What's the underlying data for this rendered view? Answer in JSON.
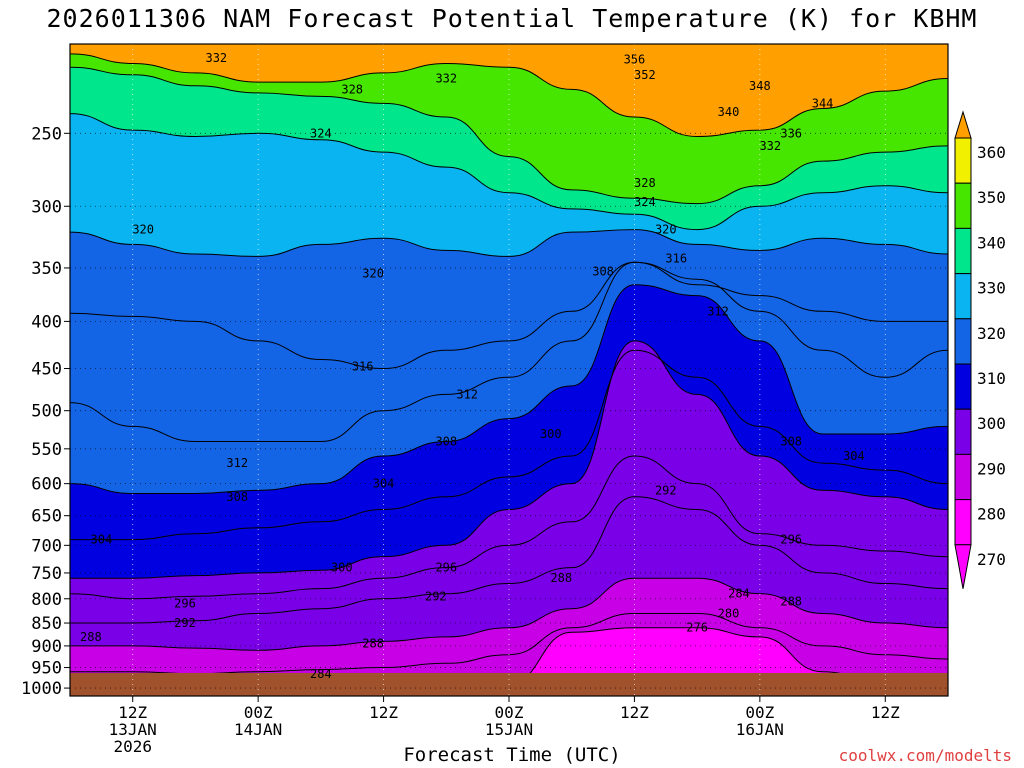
{
  "chart_data": {
    "type": "contour",
    "title": "2026011306 NAM Forecast Potential Temperature (K) for KBHM",
    "xlabel": "Forecast Time (UTC)",
    "ylabel": "",
    "credit": "coolwx.com/modelts",
    "y_axis": {
      "scale": "pressure (log)",
      "ticks": [
        250,
        300,
        350,
        400,
        450,
        500,
        550,
        600,
        650,
        700,
        750,
        800,
        850,
        900,
        950,
        1000
      ],
      "range": [
        1020,
        200
      ]
    },
    "x_axis": {
      "ticks": [
        {
          "line1": "12Z",
          "line2": "13JAN",
          "line3": "2026"
        },
        {
          "line1": "00Z",
          "line2": "14JAN",
          "line3": ""
        },
        {
          "line1": "12Z",
          "line2": "",
          "line3": ""
        },
        {
          "line1": "00Z",
          "line2": "15JAN",
          "line3": ""
        },
        {
          "line1": "12Z",
          "line2": "",
          "line3": ""
        },
        {
          "line1": "00Z",
          "line2": "16JAN",
          "line3": ""
        },
        {
          "line1": "12Z",
          "line2": "",
          "line3": ""
        }
      ],
      "hours_from_start": [
        6,
        18,
        30,
        42,
        54,
        66,
        78
      ],
      "range_hours": [
        0,
        84
      ]
    },
    "colorbar": {
      "levels": [
        270,
        280,
        290,
        300,
        310,
        320,
        330,
        340,
        350,
        360
      ],
      "colors": [
        "#ff00ff",
        "#c800e6",
        "#7a00e8",
        "#0000e0",
        "#1464e6",
        "#0ab4f0",
        "#00e68c",
        "#46e600",
        "#f0f000",
        "#ffa000"
      ]
    },
    "series": [
      {
        "theta": 344,
        "pressure": [
          205,
          210,
          215,
          220,
          220,
          215,
          210,
          212,
          224,
          240,
          252,
          248,
          235,
          225,
          218
        ]
      },
      {
        "theta": 332,
        "pressure": [
          212,
          216,
          222,
          226,
          228,
          232,
          240,
          265,
          288,
          294,
          298,
          285,
          268,
          262,
          258
        ]
      },
      {
        "theta": 324,
        "pressure": [
          238,
          248,
          252,
          250,
          254,
          262,
          272,
          290,
          302,
          306,
          318,
          300,
          290,
          285,
          290
        ]
      },
      {
        "theta": 320,
        "pressure": [
          320,
          330,
          338,
          340,
          330,
          325,
          335,
          340,
          320,
          318,
          330,
          335,
          325,
          330,
          338
        ]
      },
      {
        "theta": 316,
        "pressure": [
          392,
          395,
          400,
          420,
          440,
          450,
          430,
          420,
          390,
          345,
          365,
          375,
          390,
          400,
          400
        ]
      },
      {
        "theta": 312,
        "pressure": [
          490,
          520,
          540,
          540,
          540,
          500,
          480,
          460,
          420,
          345,
          360,
          390,
          430,
          460,
          430
        ]
      },
      {
        "theta": 308,
        "pressure": [
          600,
          615,
          615,
          610,
          600,
          560,
          540,
          510,
          470,
          365,
          375,
          420,
          530,
          530,
          520
        ]
      },
      {
        "theta": 304,
        "pressure": [
          690,
          690,
          680,
          670,
          660,
          640,
          620,
          590,
          560,
          430,
          460,
          520,
          570,
          580,
          600
        ]
      },
      {
        "theta": 300,
        "pressure": [
          760,
          760,
          755,
          750,
          745,
          720,
          700,
          640,
          600,
          420,
          480,
          560,
          610,
          620,
          640
        ]
      },
      {
        "theta": 296,
        "pressure": [
          790,
          800,
          795,
          790,
          780,
          760,
          740,
          700,
          660,
          560,
          600,
          680,
          700,
          710,
          720
        ]
      },
      {
        "theta": 292,
        "pressure": [
          850,
          850,
          845,
          830,
          820,
          800,
          790,
          770,
          740,
          620,
          640,
          700,
          750,
          770,
          780
        ]
      },
      {
        "theta": 288,
        "pressure": [
          900,
          900,
          905,
          910,
          900,
          890,
          880,
          860,
          820,
          760,
          760,
          790,
          830,
          850,
          860
        ]
      },
      {
        "theta": 284,
        "pressure": [
          960,
          960,
          965,
          960,
          955,
          950,
          940,
          920,
          860,
          830,
          830,
          860,
          900,
          920,
          930
        ]
      },
      {
        "theta": 276,
        "pressure": [
          1010,
          1010,
          1010,
          1010,
          1010,
          1005,
          1000,
          990,
          870,
          860,
          860,
          880,
          960,
          990,
          1000
        ]
      }
    ],
    "labels": [
      {
        "text": "356",
        "hour": 54,
        "p": 208
      },
      {
        "text": "352",
        "hour": 55,
        "p": 216
      },
      {
        "text": "348",
        "hour": 66,
        "p": 222
      },
      {
        "text": "344",
        "hour": 72,
        "p": 232
      },
      {
        "text": "340",
        "hour": 63,
        "p": 237
      },
      {
        "text": "336",
        "hour": 69,
        "p": 250
      },
      {
        "text": "332",
        "hour": 14,
        "p": 207
      },
      {
        "text": "332",
        "hour": 36,
        "p": 218
      },
      {
        "text": "332",
        "hour": 67,
        "p": 258
      },
      {
        "text": "328",
        "hour": 27,
        "p": 224
      },
      {
        "text": "328",
        "hour": 55,
        "p": 283
      },
      {
        "text": "324",
        "hour": 24,
        "p": 250
      },
      {
        "text": "324",
        "hour": 55,
        "p": 297
      },
      {
        "text": "320",
        "hour": 7,
        "p": 318
      },
      {
        "text": "320",
        "hour": 29,
        "p": 355
      },
      {
        "text": "320",
        "hour": 57,
        "p": 318
      },
      {
        "text": "316",
        "hour": 58,
        "p": 342
      },
      {
        "text": "316",
        "hour": 28,
        "p": 448
      },
      {
        "text": "312",
        "hour": 62,
        "p": 390
      },
      {
        "text": "312",
        "hour": 38,
        "p": 480
      },
      {
        "text": "312",
        "hour": 16,
        "p": 570
      },
      {
        "text": "308",
        "hour": 51,
        "p": 353
      },
      {
        "text": "308",
        "hour": 36,
        "p": 540
      },
      {
        "text": "308",
        "hour": 16,
        "p": 620
      },
      {
        "text": "308",
        "hour": 69,
        "p": 540
      },
      {
        "text": "304",
        "hour": 30,
        "p": 600
      },
      {
        "text": "304",
        "hour": 3,
        "p": 690
      },
      {
        "text": "304",
        "hour": 75,
        "p": 560
      },
      {
        "text": "300",
        "hour": 46,
        "p": 530
      },
      {
        "text": "300",
        "hour": 26,
        "p": 740
      },
      {
        "text": "296",
        "hour": 36,
        "p": 740
      },
      {
        "text": "296",
        "hour": 11,
        "p": 810
      },
      {
        "text": "296",
        "hour": 69,
        "p": 690
      },
      {
        "text": "292",
        "hour": 11,
        "p": 850
      },
      {
        "text": "292",
        "hour": 35,
        "p": 795
      },
      {
        "text": "292",
        "hour": 57,
        "p": 610
      },
      {
        "text": "288",
        "hour": 2,
        "p": 880
      },
      {
        "text": "288",
        "hour": 29,
        "p": 895
      },
      {
        "text": "288",
        "hour": 47,
        "p": 760
      },
      {
        "text": "288",
        "hour": 69,
        "p": 805
      },
      {
        "text": "284",
        "hour": 24,
        "p": 965
      },
      {
        "text": "284",
        "hour": 64,
        "p": 790
      },
      {
        "text": "280",
        "hour": 63,
        "p": 830
      },
      {
        "text": "276",
        "hour": 60,
        "p": 860
      }
    ]
  }
}
